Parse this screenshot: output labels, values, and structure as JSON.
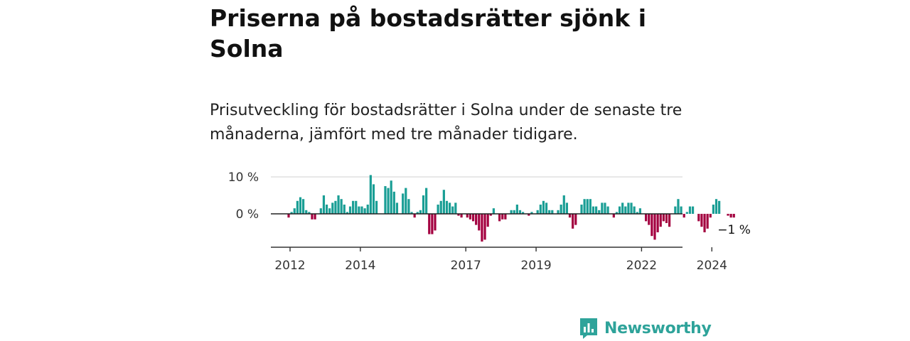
{
  "title": "Priserna på bostadsrätter sjönk i Solna",
  "subtitle": "Prisutveckling för bostadsrätter i Solna under de senaste tre månaderna, jämfört med tre månader tidigare.",
  "brand": "Newsworthy",
  "colors": {
    "positive": "#1a9e95",
    "negative": "#a3003f",
    "brand": "#2ea39a"
  },
  "chart_data": {
    "type": "bar",
    "x_start": "2012-01",
    "ylim": [
      -9,
      11
    ],
    "y_ticks": [
      {
        "value": 10,
        "label": "10 %"
      },
      {
        "value": 0,
        "label": "0 %"
      }
    ],
    "x_ticks": [
      "2012",
      "2014",
      "2017",
      "2019",
      "2022",
      "2024"
    ],
    "last_label": "−1 %",
    "values": [
      -1,
      0.5,
      1.5,
      3.5,
      4.5,
      4,
      1,
      0.5,
      -1.5,
      -1.5,
      0,
      1.5,
      5,
      2.5,
      1.5,
      3,
      3.5,
      5,
      4,
      2.5,
      0.5,
      2,
      3.5,
      3.5,
      2,
      2,
      1.5,
      2.5,
      10.5,
      8,
      3.5,
      0,
      0,
      7.5,
      7,
      9,
      6,
      3,
      0,
      5.5,
      7,
      4,
      0.5,
      -1,
      0.5,
      1,
      5,
      7,
      -5.5,
      -5.5,
      -4.5,
      2.5,
      3.5,
      6.5,
      3.5,
      3,
      2,
      3,
      -0.5,
      -1,
      0,
      -1,
      -1.5,
      -2,
      -3,
      -4.5,
      -7.5,
      -7,
      -3.5,
      -0.5,
      1.5,
      0,
      -2,
      -1.5,
      -1.5,
      0,
      1,
      1,
      2.5,
      1,
      0.5,
      0,
      -0.5,
      0.5,
      0,
      1,
      2.5,
      3.5,
      3,
      1,
      1,
      0,
      1,
      2.5,
      5,
      3,
      -1,
      -4,
      -3,
      0,
      2.5,
      4,
      4,
      4,
      2,
      2,
      1,
      3,
      3,
      2,
      0,
      -1,
      0.5,
      2,
      3,
      2,
      3,
      3,
      2,
      0.5,
      1.5,
      0,
      -2,
      -3,
      -6,
      -7,
      -5,
      -3.5,
      -2,
      -2.5,
      -3.5,
      0,
      2,
      4,
      2,
      -1,
      0.5,
      2,
      2,
      0,
      -2,
      -3.5,
      -5,
      -4,
      -1,
      2.5,
      4,
      3.5,
      0,
      0,
      -0.5,
      -1,
      -1
    ]
  }
}
